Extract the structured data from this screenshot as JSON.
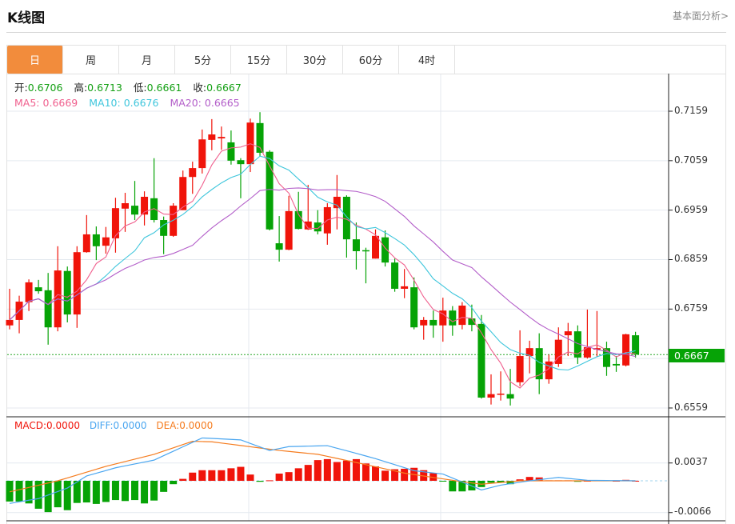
{
  "header": {
    "title": "K线图",
    "fundamental_link": "基本面分析>"
  },
  "tabs": [
    {
      "label": "日",
      "active": true
    },
    {
      "label": "周"
    },
    {
      "label": "月"
    },
    {
      "label": "5分"
    },
    {
      "label": "15分"
    },
    {
      "label": "30分"
    },
    {
      "label": "60分"
    },
    {
      "label": "4时"
    }
  ],
  "ohlc": {
    "open_label": "开:",
    "open": "0.6706",
    "high_label": "高:",
    "high": "0.6713",
    "low_label": "低:",
    "low": "0.6661",
    "close_label": "收:",
    "close": "0.6667"
  },
  "ma": {
    "ma5_label": "MA5:",
    "ma5": "0.6669",
    "ma10_label": "MA10:",
    "ma10": "0.6676",
    "ma20_label": "MA20:",
    "ma20": "0.6665"
  },
  "macd_info": {
    "macd": "MACD:0.0000",
    "diff": "DIFF:0.0000",
    "dea": "DEA:0.0000"
  },
  "price_axis": [
    "0.7159",
    "0.7059",
    "0.6959",
    "0.6859",
    "0.6759",
    "0.6559"
  ],
  "current_price": "0.6667",
  "macd_axis": [
    "0.0037",
    "-0.0066"
  ],
  "colors": {
    "up": "#f0140a",
    "down": "#06a306",
    "ma5": "#f0608e",
    "ma10": "#3fc6dc",
    "ma20": "#b35ec9",
    "diff": "#4aa6f0",
    "dea": "#f57c1f",
    "accent": "#f28c3c"
  },
  "chart_data": {
    "type": "candlestick",
    "price_range": [
      0.654,
      0.719
    ],
    "candles": [
      [
        0.6726,
        0.68,
        0.6718,
        0.6737
      ],
      [
        0.6737,
        0.6786,
        0.671,
        0.6774
      ],
      [
        0.6773,
        0.6819,
        0.6755,
        0.6813
      ],
      [
        0.6803,
        0.6818,
        0.679,
        0.6795
      ],
      [
        0.6797,
        0.6832,
        0.6687,
        0.6722
      ],
      [
        0.6722,
        0.6886,
        0.6714,
        0.6837
      ],
      [
        0.6836,
        0.6845,
        0.6732,
        0.6748
      ],
      [
        0.6748,
        0.6886,
        0.6721,
        0.6874
      ],
      [
        0.6874,
        0.6949,
        0.6873,
        0.691
      ],
      [
        0.691,
        0.6926,
        0.6858,
        0.6886
      ],
      [
        0.6887,
        0.6925,
        0.6871,
        0.6904
      ],
      [
        0.6902,
        0.6984,
        0.6873,
        0.6963
      ],
      [
        0.6962,
        0.6994,
        0.6915,
        0.6973
      ],
      [
        0.6968,
        0.7018,
        0.6939,
        0.695
      ],
      [
        0.695,
        0.6997,
        0.6928,
        0.6986
      ],
      [
        0.6983,
        0.7064,
        0.6934,
        0.6939
      ],
      [
        0.6939,
        0.6946,
        0.687,
        0.6907
      ],
      [
        0.6907,
        0.6973,
        0.6905,
        0.6968
      ],
      [
        0.6959,
        0.7039,
        0.6959,
        0.7026
      ],
      [
        0.7026,
        0.7057,
        0.6992,
        0.7044
      ],
      [
        0.7044,
        0.7122,
        0.7033,
        0.7102
      ],
      [
        0.7101,
        0.7143,
        0.708,
        0.7112
      ],
      [
        0.7104,
        0.7128,
        0.7081,
        0.7107
      ],
      [
        0.7096,
        0.712,
        0.7051,
        0.7059
      ],
      [
        0.706,
        0.7064,
        0.6983,
        0.7052
      ],
      [
        0.7052,
        0.7144,
        0.7036,
        0.7136
      ],
      [
        0.7135,
        0.7157,
        0.7068,
        0.7075
      ],
      [
        0.7077,
        0.708,
        0.6918,
        0.692
      ],
      [
        0.6892,
        0.6947,
        0.6855,
        0.6879
      ],
      [
        0.6879,
        0.6988,
        0.6878,
        0.6957
      ],
      [
        0.6957,
        0.6996,
        0.692,
        0.6921
      ],
      [
        0.692,
        0.701,
        0.6919,
        0.6936
      ],
      [
        0.6934,
        0.6959,
        0.691,
        0.6916
      ],
      [
        0.6912,
        0.6973,
        0.6889,
        0.6965
      ],
      [
        0.6963,
        0.703,
        0.692,
        0.6986
      ],
      [
        0.6986,
        0.6989,
        0.6863,
        0.69
      ],
      [
        0.69,
        0.6934,
        0.6839,
        0.6876
      ],
      [
        0.6878,
        0.6883,
        0.6811,
        0.6876
      ],
      [
        0.6861,
        0.692,
        0.6861,
        0.6907
      ],
      [
        0.6904,
        0.6918,
        0.6845,
        0.6853
      ],
      [
        0.6853,
        0.6861,
        0.6794,
        0.68
      ],
      [
        0.68,
        0.684,
        0.6781,
        0.6805
      ],
      [
        0.6803,
        0.6823,
        0.6718,
        0.6722
      ],
      [
        0.6726,
        0.6743,
        0.6697,
        0.6737
      ],
      [
        0.6737,
        0.6756,
        0.6701,
        0.6726
      ],
      [
        0.6726,
        0.6782,
        0.6693,
        0.6756
      ],
      [
        0.6756,
        0.6765,
        0.6705,
        0.6726
      ],
      [
        0.6727,
        0.6773,
        0.6718,
        0.6766
      ],
      [
        0.674,
        0.6768,
        0.6714,
        0.6727
      ],
      [
        0.6729,
        0.6747,
        0.6578,
        0.658
      ],
      [
        0.658,
        0.6627,
        0.6566,
        0.6587
      ],
      [
        0.6587,
        0.6633,
        0.6574,
        0.6588
      ],
      [
        0.6587,
        0.6638,
        0.6564,
        0.6578
      ],
      [
        0.6611,
        0.6716,
        0.6603,
        0.6664
      ],
      [
        0.6664,
        0.6695,
        0.6629,
        0.668
      ],
      [
        0.668,
        0.671,
        0.6587,
        0.6617
      ],
      [
        0.6617,
        0.6667,
        0.6608,
        0.6653
      ],
      [
        0.6648,
        0.6722,
        0.6642,
        0.6697
      ],
      [
        0.6706,
        0.6731,
        0.6664,
        0.6714
      ],
      [
        0.6714,
        0.6726,
        0.6648,
        0.6661
      ],
      [
        0.6661,
        0.6758,
        0.6659,
        0.6682
      ],
      [
        0.6677,
        0.6755,
        0.6663,
        0.668
      ],
      [
        0.668,
        0.6693,
        0.6624,
        0.6642
      ],
      [
        0.6648,
        0.6664,
        0.6632,
        0.6645
      ],
      [
        0.6645,
        0.6709,
        0.6643,
        0.6708
      ],
      [
        0.6706,
        0.6713,
        0.6661,
        0.6667
      ]
    ],
    "candle_format": [
      "open",
      "high",
      "low",
      "close"
    ],
    "macd_range": [
      -0.009,
      0.011
    ],
    "macd_hist": [
      -0.0043,
      -0.0043,
      -0.0047,
      -0.0058,
      -0.0065,
      -0.0055,
      -0.0061,
      -0.0046,
      -0.0045,
      -0.0048,
      -0.0044,
      -0.004,
      -0.0042,
      -0.004,
      -0.0047,
      -0.0041,
      -0.0023,
      -0.0007,
      0.0004,
      0.0017,
      0.0022,
      0.0022,
      0.0022,
      0.0026,
      0.0029,
      0.0013,
      -0.0002,
      0.0001,
      0.0015,
      0.0018,
      0.0026,
      0.0033,
      0.0043,
      0.0045,
      0.0039,
      0.0042,
      0.0045,
      0.0036,
      0.003,
      0.0021,
      0.0024,
      0.0025,
      0.0027,
      0.0022,
      0.0016,
      -0.0001,
      -0.0022,
      -0.0022,
      -0.002,
      -0.0013,
      -0.0004,
      -0.0004,
      -0.0007,
      0.0003,
      0.0008,
      0.0007,
      0.0001,
      0.0001,
      0.0001,
      -0.0002,
      0.0,
      0.0001,
      0.0001,
      0.0,
      0.0002,
      0.0
    ],
    "diff_keypoints": [
      [
        0,
        -0.0047
      ],
      [
        3,
        -0.0037
      ],
      [
        6,
        -0.0015
      ],
      [
        8,
        0.001
      ],
      [
        11,
        0.0027
      ],
      [
        15,
        0.0043
      ],
      [
        20,
        0.0089
      ],
      [
        24,
        0.0085
      ],
      [
        27,
        0.0063
      ],
      [
        29,
        0.0071
      ],
      [
        33,
        0.0073
      ],
      [
        36,
        0.0057
      ],
      [
        38,
        0.0046
      ],
      [
        42,
        0.0021
      ],
      [
        45,
        0.0014
      ],
      [
        49,
        -0.0019
      ],
      [
        51,
        -0.0009
      ],
      [
        54,
        0.0
      ],
      [
        57,
        0.0007
      ],
      [
        60,
        0.0001
      ],
      [
        65,
        0.0
      ]
    ],
    "dea_keypoints": [
      [
        0,
        -0.0023
      ],
      [
        5,
        0.0
      ],
      [
        10,
        0.003
      ],
      [
        15,
        0.0055
      ],
      [
        19,
        0.0082
      ],
      [
        21,
        0.0081
      ],
      [
        28,
        0.0063
      ],
      [
        32,
        0.0055
      ],
      [
        36,
        0.0038
      ],
      [
        41,
        0.0016
      ],
      [
        47,
        -0.0002
      ],
      [
        49,
        -0.0007
      ],
      [
        53,
        0.0
      ],
      [
        65,
        0.0
      ]
    ]
  }
}
